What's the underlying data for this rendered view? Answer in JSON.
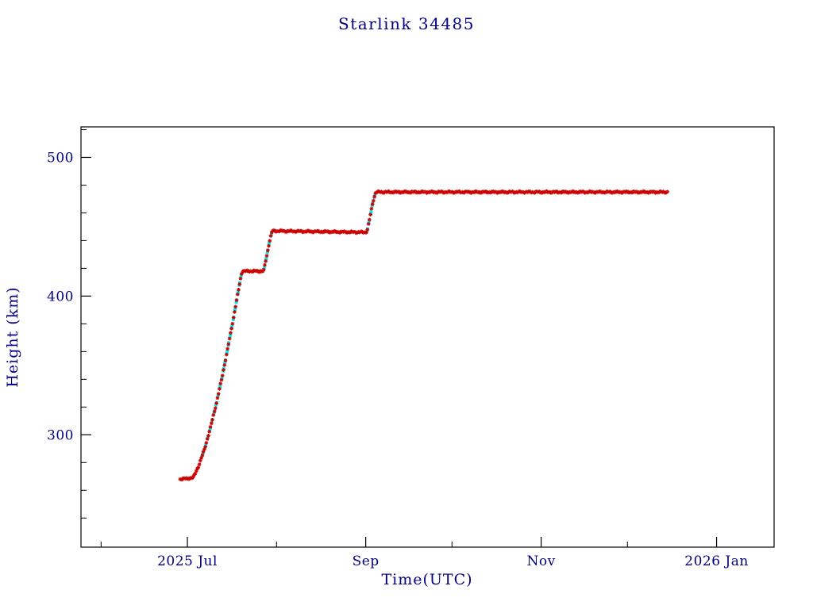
{
  "page": {
    "background_color": "#ffffff",
    "text_color": "#000080"
  },
  "chart_data": {
    "type": "scatter",
    "title": "Starlink 34485",
    "xlabel": "Time(UTC)",
    "ylabel": "Height (km)",
    "axis_color": "#000000",
    "label_color": "#000080",
    "legend": "none",
    "grid": false,
    "x_axis": {
      "unit": "days relative to 2025 Jul 1",
      "tick_labels": [
        "2025 Jul",
        "Sep",
        "Nov",
        "2026 Jan"
      ],
      "tick_days": [
        0,
        62,
        123,
        184
      ],
      "minor_days": [
        -30,
        31,
        92,
        153
      ],
      "range_days": [
        -37,
        204
      ]
    },
    "y_axis": {
      "unit": "km",
      "tick_labels": [
        "300",
        "400",
        "500"
      ],
      "tick_values": [
        300,
        400,
        500
      ],
      "minor_values": [
        240,
        260,
        280,
        320,
        340,
        360,
        380,
        420,
        440,
        460,
        480,
        520
      ],
      "range": [
        219,
        522
      ]
    },
    "series": [
      {
        "name": "height-measurements",
        "color": "#cc0000",
        "marker": "asterisk",
        "profile_day_km": [
          [
            -2.5,
            268
          ],
          [
            2,
            269
          ],
          [
            4,
            278
          ],
          [
            6,
            290
          ],
          [
            8,
            305
          ],
          [
            10,
            322
          ],
          [
            12,
            341
          ],
          [
            14,
            362
          ],
          [
            16,
            384
          ],
          [
            18,
            407
          ],
          [
            19,
            418
          ],
          [
            26.5,
            418
          ],
          [
            27.5,
            428
          ],
          [
            28.5,
            439
          ],
          [
            29.5,
            447
          ],
          [
            62,
            446
          ],
          [
            62.5,
            447
          ],
          [
            63.5,
            457
          ],
          [
            64.5,
            468
          ],
          [
            65.5,
            475
          ],
          [
            167,
            475
          ]
        ]
      },
      {
        "name": "maneuver-highlight",
        "color": "#00eeee",
        "style": "dashed-line",
        "windows_days": [
          [
            5,
            19
          ],
          [
            26.5,
            29.5
          ],
          [
            62,
            65.5
          ]
        ]
      }
    ]
  }
}
